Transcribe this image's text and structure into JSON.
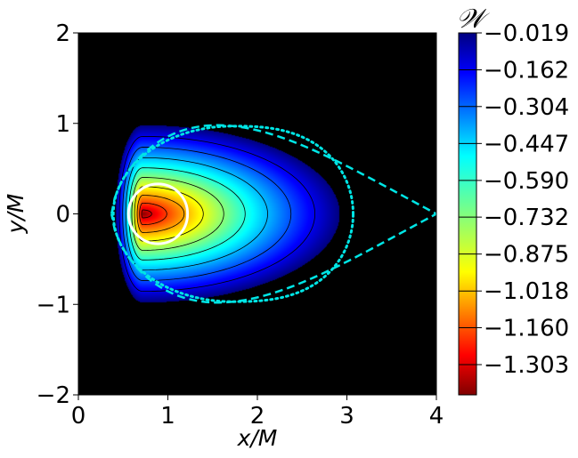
{
  "chart_data": {
    "type": "heatmap",
    "title": "",
    "xlabel": "x/M",
    "ylabel": "y/M",
    "xlim": [
      0,
      4
    ],
    "ylim": [
      -2,
      2
    ],
    "x_ticks": [
      "0",
      "1",
      "2",
      "3",
      "4"
    ],
    "y_ticks": [
      "2",
      "1",
      "0",
      "−1",
      "−2"
    ],
    "colorbar": {
      "label": "𝒲",
      "colormap": "jet",
      "ticks": [
        "−0.019",
        "−0.162",
        "−0.304",
        "−0.447",
        "−0.590",
        "−0.732",
        "−0.875",
        "−1.018",
        "−1.160",
        "−1.303"
      ],
      "min": -1.42,
      "max": -0.019
    },
    "background_color": "#000000",
    "field": {
      "center_x": 0.72,
      "center_y": 0.0,
      "outer_edge_x": 2.92,
      "inner_edge_x": 0.42,
      "half_height": 0.98,
      "min_value": -1.42,
      "max_value": -0.019
    },
    "overlays": [
      {
        "kind": "circle",
        "center_x": 0.89,
        "center_y": 0.0,
        "radius": 0.33,
        "color": "#ffffff",
        "style": "solid"
      },
      {
        "kind": "teardrop-boundary",
        "inner_x": 0.37,
        "tip_x": 4.0,
        "half_height": 0.98,
        "color": "#00e5e5",
        "style": "dashed"
      },
      {
        "kind": "closed-boundary",
        "inner_x": 0.39,
        "outer_x": 3.07,
        "half_height": 0.97,
        "color": "#00e5e5",
        "style": "dotted"
      }
    ]
  }
}
